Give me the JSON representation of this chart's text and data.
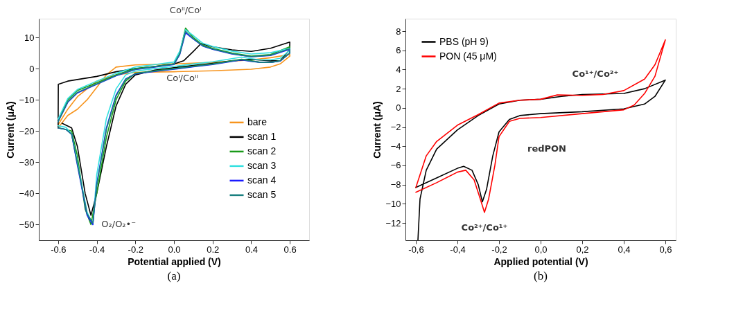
{
  "chart_data": [
    {
      "type": "line",
      "xlabel": "Potential applied (V)",
      "ylabel": "Current (μA)",
      "xlim": [
        -0.7,
        0.7
      ],
      "xticks": [
        -0.6,
        -0.4,
        -0.2,
        {
          "value": 0.0,
          "label": "0.0"
        },
        0.2,
        0.4,
        0.6
      ],
      "ylim": [
        -55,
        16
      ],
      "yticks": [
        -50,
        -40,
        -30,
        -20,
        -10,
        0,
        10
      ],
      "grid": false,
      "legend": "right",
      "line_style": "solid",
      "marker": "none",
      "annotations": [
        {
          "text": "Coᴵᴵ/Coᴵ",
          "x": 0.06,
          "y": 13
        },
        {
          "text": "Coᴵ/Coᴵᴵ",
          "x": 0.0,
          "y": 0
        },
        {
          "text": "O₂/O₂•⁻",
          "x": -0.43,
          "y": -50
        },
        "(a)"
      ],
      "series": [
        {
          "name": "bare",
          "color": "#f7941d",
          "x": [
            -0.6,
            -0.55,
            -0.5,
            -0.45,
            -0.4,
            -0.35,
            -0.3,
            -0.2,
            0.0,
            0.2,
            0.4,
            0.5,
            0.6,
            0.6,
            0.55,
            0.5,
            0.4,
            0.2,
            0.0,
            -0.2,
            -0.3,
            -0.4,
            -0.5,
            -0.55,
            -0.6
          ],
          "values": [
            -19,
            -15,
            -13,
            -10,
            -6,
            -2,
            0.5,
            1.2,
            1.5,
            2.0,
            2.8,
            3.5,
            4.5,
            4,
            1.5,
            0.5,
            -0.2,
            -0.7,
            -1,
            -1.2,
            -2,
            -4,
            -9,
            -13,
            -18
          ]
        },
        {
          "name": "scan 1",
          "color": "#000000",
          "x": [
            -0.6,
            -0.599,
            -0.55,
            -0.4,
            -0.3,
            -0.2,
            -0.1,
            0.0,
            0.05,
            0.1,
            0.14,
            0.2,
            0.3,
            0.4,
            0.5,
            0.6,
            0.599,
            0.55,
            0.5,
            0.4,
            0.3,
            0.2,
            0.1,
            0.0,
            -0.1,
            -0.2,
            -0.25,
            -0.3,
            -0.35,
            -0.4,
            -0.43,
            -0.46,
            -0.5,
            -0.53,
            -0.58
          ],
          "values": [
            -19,
            -5,
            -4,
            -2.5,
            -1,
            0,
            0.7,
            1.5,
            2.5,
            5.5,
            8,
            7,
            6,
            5.5,
            6.5,
            8.5,
            6,
            2.5,
            2.5,
            3,
            2.5,
            1.7,
            1,
            0.3,
            -0.5,
            -2,
            -5,
            -12,
            -25,
            -40,
            -47,
            -40,
            -25,
            -19,
            -17.5
          ]
        },
        {
          "name": "scan 2",
          "color": "#1a9a1a",
          "x": [
            -0.6,
            -0.55,
            -0.5,
            -0.4,
            -0.3,
            -0.2,
            -0.1,
            0.0,
            0.03,
            0.06,
            0.1,
            0.15,
            0.2,
            0.3,
            0.4,
            0.5,
            0.6,
            0.6,
            0.55,
            0.5,
            0.45,
            0.4,
            0.35,
            0.2,
            0.1,
            0.0,
            -0.1,
            -0.2,
            -0.25,
            -0.3,
            -0.35,
            -0.4,
            -0.43,
            -0.46,
            -0.5,
            -0.53,
            -0.56,
            -0.6
          ],
          "values": [
            -17,
            -10,
            -7,
            -4.5,
            -2,
            0,
            0.7,
            1.5,
            5,
            13,
            10,
            7.5,
            6.5,
            5,
            4,
            4.5,
            7,
            5,
            2.5,
            2,
            2,
            2.5,
            3,
            1.5,
            0.8,
            0,
            -0.7,
            -1.5,
            -4,
            -10,
            -22,
            -40,
            -50,
            -45,
            -28,
            -20,
            -19.5,
            -19
          ]
        },
        {
          "name": "scan 3",
          "color": "#33e0e0",
          "x": [
            -0.6,
            -0.55,
            -0.5,
            -0.4,
            -0.3,
            -0.2,
            -0.1,
            0.0,
            0.03,
            0.06,
            0.1,
            0.15,
            0.2,
            0.3,
            0.4,
            0.5,
            0.6,
            0.6,
            0.55,
            0.5,
            0.45,
            0.4,
            0.35,
            0.2,
            0.1,
            0.0,
            -0.1,
            -0.2,
            -0.25,
            -0.3,
            -0.35,
            -0.4,
            -0.42,
            -0.45,
            -0.5,
            -0.53,
            -0.56,
            -0.6
          ],
          "values": [
            -16.2,
            -9.6,
            -6.7,
            -4.0,
            -1.5,
            0.5,
            1.3,
            2.1,
            5.6,
            12.5,
            10.6,
            8.1,
            7.1,
            5.6,
            4.7,
            5.1,
            6.5,
            5.8,
            3.3,
            2.8,
            2.8,
            3.2,
            3.7,
            2.2,
            1.5,
            0.7,
            0.0,
            -0.8,
            -2.0,
            -6.5,
            -16,
            -34,
            -50,
            -46,
            -30,
            -21,
            -18.8,
            -18.3
          ]
        },
        {
          "name": "scan 4",
          "color": "#1a1aff",
          "x": [
            -0.6,
            -0.55,
            -0.5,
            -0.4,
            -0.3,
            -0.2,
            -0.1,
            0.0,
            0.03,
            0.06,
            0.1,
            0.15,
            0.2,
            0.3,
            0.4,
            0.5,
            0.6,
            0.6,
            0.55,
            0.5,
            0.45,
            0.4,
            0.35,
            0.2,
            0.1,
            0.0,
            -0.1,
            -0.2,
            -0.25,
            -0.3,
            -0.35,
            -0.4,
            -0.42,
            -0.45,
            -0.5,
            -0.53,
            -0.56,
            -0.6
          ],
          "values": [
            -17,
            -10.8,
            -7.8,
            -5,
            -2.3,
            -0.3,
            0.5,
            1.3,
            4.5,
            11.5,
            9.5,
            7.2,
            6.2,
            4.7,
            3.8,
            4.2,
            6.2,
            5,
            2.4,
            2,
            2,
            2.3,
            2.8,
            1.3,
            0.6,
            -0.2,
            -0.9,
            -1.7,
            -3.3,
            -8.5,
            -19,
            -37,
            -50,
            -47,
            -31,
            -21,
            -19.5,
            -19
          ]
        },
        {
          "name": "scan 5",
          "color": "#1a8080",
          "x": [
            -0.6,
            -0.55,
            -0.5,
            -0.4,
            -0.3,
            -0.2,
            -0.1,
            0.0,
            0.03,
            0.06,
            0.1,
            0.15,
            0.2,
            0.3,
            0.4,
            0.5,
            0.6,
            0.6,
            0.55,
            0.5,
            0.45,
            0.4,
            0.35,
            0.2,
            0.1,
            0.0,
            -0.1,
            -0.2,
            -0.25,
            -0.3,
            -0.35,
            -0.4,
            -0.42,
            -0.45,
            -0.5,
            -0.53,
            -0.56,
            -0.6
          ],
          "values": [
            -17,
            -10.6,
            -7.6,
            -4.9,
            -2.2,
            -0.2,
            0.6,
            1.4,
            4.7,
            12,
            9.6,
            7.3,
            6.3,
            4.8,
            3.8,
            4.3,
            6.4,
            5,
            2.5,
            2,
            2,
            2.4,
            2.9,
            1.4,
            0.7,
            -0.1,
            -0.8,
            -1.6,
            -3.4,
            -8.8,
            -19.5,
            -37.5,
            -49.5,
            -46.5,
            -30.5,
            -21,
            -19.5,
            -19
          ]
        }
      ]
    },
    {
      "type": "line",
      "xlabel": "Applied potential (V)",
      "ylabel": "Current (μA)",
      "xlim": [
        -0.65,
        0.65
      ],
      "xticks": [
        {
          "value": -0.6,
          "label": "-0,6"
        },
        {
          "value": -0.4,
          "label": "-0,4"
        },
        {
          "value": -0.2,
          "label": "-0,2"
        },
        {
          "value": 0.0,
          "label": "0,0"
        },
        {
          "value": 0.2,
          "label": "0,2"
        },
        {
          "value": 0.4,
          "label": "0,4"
        },
        {
          "value": 0.6,
          "label": "0,6"
        }
      ],
      "ylim": [
        -13.8,
        9.3
      ],
      "yticks": [
        -12,
        -10,
        -8,
        -6,
        -4,
        -2,
        0,
        2,
        4,
        6,
        8
      ],
      "grid": false,
      "legend": "top left",
      "line_style": "solid",
      "marker": "none",
      "annotations": [
        {
          "text": "Co¹⁺/Co²⁺",
          "x": 0.08,
          "y": 1.35
        },
        {
          "text": "redPON",
          "x": 0.03,
          "y": -1.0
        },
        {
          "text": "Co²⁺/Co¹⁺",
          "x": -0.27,
          "y": -10.9
        },
        "(b)"
      ],
      "series": [
        {
          "name": "PBS (pH 9)",
          "color": "#000000",
          "x": [
            -0.6,
            -0.5,
            -0.4,
            -0.37,
            -0.33,
            -0.3,
            -0.28,
            -0.26,
            -0.23,
            -0.2,
            -0.15,
            -0.1,
            0.0,
            0.2,
            0.4,
            0.5,
            0.55,
            0.6,
            0.5,
            0.4,
            0.2,
            0.1,
            0.0,
            -0.1,
            -0.2,
            -0.3,
            -0.4,
            -0.5,
            -0.55,
            -0.58,
            -0.59
          ],
          "values": [
            -8.3,
            -7.3,
            -6.3,
            -6.1,
            -6.5,
            -8,
            -9.8,
            -8.5,
            -5,
            -2.5,
            -1.2,
            -0.8,
            -0.6,
            -0.4,
            -0.1,
            0.4,
            1.2,
            2.9,
            2.0,
            1.5,
            1.4,
            1.2,
            0.9,
            0.8,
            0.4,
            -0.8,
            -2.3,
            -4.3,
            -6.5,
            -9.5,
            -13.8
          ]
        },
        {
          "name": "PON (45 μM)",
          "color": "#ff0000",
          "x": [
            -0.6,
            -0.5,
            -0.4,
            -0.36,
            -0.32,
            -0.29,
            -0.27,
            -0.25,
            -0.22,
            -0.2,
            -0.15,
            -0.1,
            0.0,
            0.2,
            0.4,
            0.45,
            0.5,
            0.55,
            0.6,
            0.55,
            0.5,
            0.4,
            0.3,
            0.2,
            0.08,
            0.0,
            -0.1,
            -0.2,
            -0.3,
            -0.4,
            -0.5,
            -0.55,
            -0.6
          ],
          "values": [
            -8.8,
            -7.8,
            -6.7,
            -6.5,
            -7.5,
            -9.5,
            -10.9,
            -9.5,
            -6,
            -3,
            -1.4,
            -1.1,
            -1.0,
            -0.6,
            -0.2,
            0.3,
            1.5,
            3.3,
            7.1,
            4.5,
            3.0,
            1.8,
            1.4,
            1.3,
            1.35,
            0.9,
            0.8,
            0.5,
            -0.7,
            -1.8,
            -3.5,
            -5,
            -8.3
          ]
        }
      ]
    }
  ]
}
